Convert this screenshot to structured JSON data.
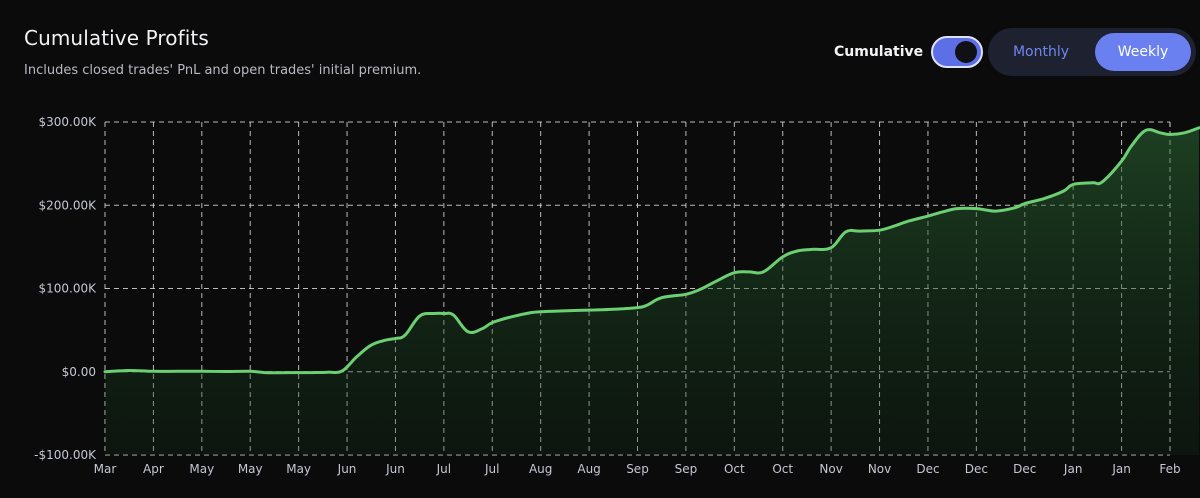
{
  "header": {
    "title": "Cumulative Profits",
    "subtitle": "Includes closed trades' PnL and open trades' initial premium."
  },
  "controls": {
    "cumulative_label": "Cumulative",
    "cumulative_on": true,
    "periods": [
      "Monthly",
      "Weekly"
    ],
    "active_period": "Weekly"
  },
  "colors": {
    "line": "#6ccf72",
    "grid": "#d9d9d9",
    "accent": "#6a7ff0"
  },
  "chart_data": {
    "type": "area",
    "title": "Cumulative Profits",
    "xlabel": "",
    "ylabel": "",
    "ylim": [
      -100000,
      300000
    ],
    "y_ticks": [
      300000,
      200000,
      100000,
      0,
      -100000
    ],
    "y_tick_labels": [
      "$300.00K",
      "$200.00K",
      "$100.00K",
      "$0.00",
      "-$100.00K"
    ],
    "x_tick_labels": [
      "Mar",
      "Apr",
      "May",
      "May",
      "May",
      "Jun",
      "Jun",
      "Jul",
      "Jul",
      "Aug",
      "Aug",
      "Sep",
      "Sep",
      "Oct",
      "Oct",
      "Nov",
      "Nov",
      "Dec",
      "Dec",
      "Dec",
      "Jan",
      "Jan",
      "Feb"
    ],
    "grid": true,
    "legend": "none",
    "series": [
      {
        "x": [
          0,
          0.3,
          0.5,
          0.8,
          1,
          1.5,
          2,
          2.5,
          3,
          3.3,
          3.6,
          4,
          4.3,
          4.6,
          4.9,
          5.2,
          5.5,
          5.8,
          6,
          6.2,
          6.5,
          6.8,
          7,
          7.2,
          7.5,
          7.8,
          8,
          8.4,
          8.8,
          9,
          9.4,
          10,
          10.5,
          11,
          11.2,
          11.5,
          12,
          12.3,
          12.6,
          13,
          13.3,
          13.6,
          14,
          14.3,
          14.6,
          15,
          15.3,
          15.6,
          16,
          16.3,
          16.6,
          17,
          17.3,
          17.6,
          18,
          18.4,
          18.8,
          19,
          19.4,
          19.8,
          20,
          20.4,
          20.6,
          21,
          21.2,
          21.5,
          21.8,
          22,
          22.3,
          22.6
        ]
      },
      {
        "values": [
          0,
          1000,
          1500,
          1000,
          500,
          500,
          500,
          300,
          500,
          -1000,
          -1200,
          -1000,
          -1000,
          -500,
          1000,
          18000,
          32000,
          38000,
          40000,
          44000,
          67000,
          70000,
          70000,
          68000,
          48000,
          52000,
          59000,
          66000,
          71000,
          72000,
          73000,
          74000,
          75000,
          77000,
          80000,
          89000,
          93000,
          99000,
          108000,
          119000,
          120000,
          120000,
          138000,
          145000,
          147000,
          149000,
          168000,
          169000,
          170000,
          175000,
          181000,
          187000,
          192000,
          196000,
          196000,
          193000,
          197000,
          202000,
          208000,
          217000,
          225000,
          227000,
          228000,
          253000,
          271000,
          290000,
          287000,
          285000,
          287000,
          293000
        ]
      }
    ]
  }
}
